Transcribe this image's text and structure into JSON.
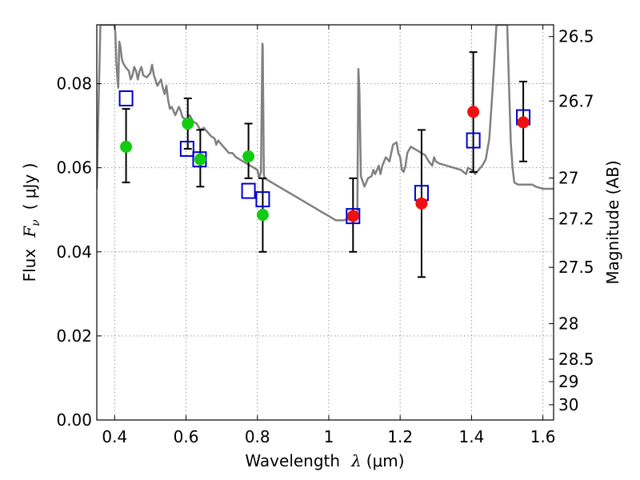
{
  "chart_data": {
    "type": "scatter",
    "xlabel": {
      "prefix": "Wavelength",
      "symbol": "λ",
      "unit": "(μm)"
    },
    "ylabel": {
      "prefix": "Flux",
      "symbol": "F",
      "sub": "ν",
      "unit": "( μJy )"
    },
    "y2label": "Magnitude (AB)",
    "xlim": [
      0.35,
      1.63
    ],
    "ylim": [
      0.0,
      0.094
    ],
    "grid": true,
    "x_ticks": [
      {
        "v": 0.4,
        "label": "0.4"
      },
      {
        "v": 0.6,
        "label": "0.6"
      },
      {
        "v": 0.8,
        "label": "0.8"
      },
      {
        "v": 1.0,
        "label": "1"
      },
      {
        "v": 1.2,
        "label": "1.2"
      },
      {
        "v": 1.4,
        "label": "1.4"
      },
      {
        "v": 1.6,
        "label": "1.6"
      }
    ],
    "y_ticks": [
      {
        "v": 0.0,
        "label": "0.00"
      },
      {
        "v": 0.02,
        "label": "0.02"
      },
      {
        "v": 0.04,
        "label": "0.04"
      },
      {
        "v": 0.06,
        "label": "0.06"
      },
      {
        "v": 0.08,
        "label": "0.08"
      }
    ],
    "y2_ticks": [
      {
        "mag": 26.5,
        "label": "26.5"
      },
      {
        "mag": 26.7,
        "label": "26.7"
      },
      {
        "mag": 27.0,
        "label": "27"
      },
      {
        "mag": 27.2,
        "label": "27.2"
      },
      {
        "mag": 27.5,
        "label": "27.5"
      },
      {
        "mag": 28.0,
        "label": "28"
      },
      {
        "mag": 28.5,
        "label": "28.5"
      },
      {
        "mag": 29.0,
        "label": "29"
      },
      {
        "mag": 30.0,
        "label": "30"
      }
    ],
    "model_sed": [
      [
        0.35,
        0.055
      ],
      [
        0.355,
        0.075
      ],
      [
        0.36,
        0.094
      ],
      [
        0.363,
        0.094
      ],
      [
        0.4,
        0.094
      ],
      [
        0.402,
        0.092
      ],
      [
        0.405,
        0.085
      ],
      [
        0.408,
        0.081
      ],
      [
        0.41,
        0.079
      ],
      [
        0.413,
        0.09
      ],
      [
        0.416,
        0.089
      ],
      [
        0.42,
        0.086
      ],
      [
        0.423,
        0.085
      ],
      [
        0.43,
        0.084
      ],
      [
        0.44,
        0.083
      ],
      [
        0.445,
        0.081
      ],
      [
        0.45,
        0.082
      ],
      [
        0.455,
        0.084
      ],
      [
        0.46,
        0.083
      ],
      [
        0.465,
        0.081
      ],
      [
        0.47,
        0.083
      ],
      [
        0.475,
        0.084
      ],
      [
        0.48,
        0.082
      ],
      [
        0.49,
        0.0815
      ],
      [
        0.5,
        0.0825
      ],
      [
        0.505,
        0.0845
      ],
      [
        0.51,
        0.082
      ],
      [
        0.52,
        0.0795
      ],
      [
        0.53,
        0.081
      ],
      [
        0.535,
        0.079
      ],
      [
        0.54,
        0.0775
      ],
      [
        0.545,
        0.0795
      ],
      [
        0.55,
        0.076
      ],
      [
        0.555,
        0.074
      ],
      [
        0.56,
        0.0745
      ],
      [
        0.57,
        0.0725
      ],
      [
        0.58,
        0.0745
      ],
      [
        0.585,
        0.0735
      ],
      [
        0.59,
        0.072
      ],
      [
        0.6,
        0.0715
      ],
      [
        0.61,
        0.0725
      ],
      [
        0.62,
        0.071
      ],
      [
        0.63,
        0.0705
      ],
      [
        0.64,
        0.069
      ],
      [
        0.65,
        0.0695
      ],
      [
        0.66,
        0.0685
      ],
      [
        0.67,
        0.0675
      ],
      [
        0.68,
        0.067
      ],
      [
        0.685,
        0.0655
      ],
      [
        0.69,
        0.0665
      ],
      [
        0.7,
        0.0655
      ],
      [
        0.71,
        0.0645
      ],
      [
        0.72,
        0.0635
      ],
      [
        0.73,
        0.0635
      ],
      [
        0.74,
        0.0625
      ],
      [
        0.76,
        0.0615
      ],
      [
        0.78,
        0.0605
      ],
      [
        0.8,
        0.0595
      ],
      [
        0.805,
        0.0575
      ],
      [
        0.81,
        0.059
      ],
      [
        0.814,
        0.0895
      ],
      [
        0.815,
        0.089
      ],
      [
        0.818,
        0.0585
      ],
      [
        0.82,
        0.0575
      ],
      [
        0.84,
        0.0565
      ],
      [
        0.86,
        0.0555
      ],
      [
        0.88,
        0.0545
      ],
      [
        0.9,
        0.0535
      ],
      [
        0.92,
        0.0525
      ],
      [
        0.94,
        0.0515
      ],
      [
        0.96,
        0.0505
      ],
      [
        0.98,
        0.0495
      ],
      [
        1.0,
        0.0485
      ],
      [
        1.02,
        0.0475
      ],
      [
        1.04,
        0.0475
      ],
      [
        1.06,
        0.0478
      ],
      [
        1.08,
        0.0482
      ],
      [
        1.083,
        0.0835
      ],
      [
        1.086,
        0.078
      ],
      [
        1.09,
        0.058
      ],
      [
        1.1,
        0.0555
      ],
      [
        1.11,
        0.0575
      ],
      [
        1.12,
        0.058
      ],
      [
        1.125,
        0.0595
      ],
      [
        1.13,
        0.0585
      ],
      [
        1.14,
        0.0605
      ],
      [
        1.145,
        0.0585
      ],
      [
        1.15,
        0.0605
      ],
      [
        1.16,
        0.0625
      ],
      [
        1.17,
        0.0615
      ],
      [
        1.18,
        0.0655
      ],
      [
        1.19,
        0.066
      ],
      [
        1.195,
        0.0635
      ],
      [
        1.2,
        0.0625
      ],
      [
        1.205,
        0.0595
      ],
      [
        1.21,
        0.059
      ],
      [
        1.215,
        0.0605
      ],
      [
        1.22,
        0.0635
      ],
      [
        1.23,
        0.065
      ],
      [
        1.25,
        0.064
      ],
      [
        1.27,
        0.063
      ],
      [
        1.28,
        0.0615
      ],
      [
        1.29,
        0.0605
      ],
      [
        1.295,
        0.0625
      ],
      [
        1.3,
        0.0615
      ],
      [
        1.31,
        0.061
      ],
      [
        1.33,
        0.0605
      ],
      [
        1.35,
        0.06
      ],
      [
        1.37,
        0.0595
      ],
      [
        1.385,
        0.0585
      ],
      [
        1.39,
        0.06
      ],
      [
        1.4,
        0.0595
      ],
      [
        1.41,
        0.0585
      ],
      [
        1.42,
        0.0595
      ],
      [
        1.43,
        0.0605
      ],
      [
        1.44,
        0.062
      ],
      [
        1.45,
        0.067
      ],
      [
        1.46,
        0.08
      ],
      [
        1.47,
        0.094
      ],
      [
        1.5,
        0.094
      ],
      [
        1.505,
        0.08
      ],
      [
        1.51,
        0.066
      ],
      [
        1.515,
        0.06
      ],
      [
        1.52,
        0.0565
      ],
      [
        1.53,
        0.056
      ],
      [
        1.55,
        0.056
      ],
      [
        1.57,
        0.056
      ],
      [
        1.58,
        0.0555
      ],
      [
        1.6,
        0.055
      ],
      [
        1.63,
        0.055
      ]
    ],
    "error_bars": [
      {
        "x": 0.432,
        "lo": 0.0565,
        "hi": 0.074
      },
      {
        "x": 0.605,
        "lo": 0.0645,
        "hi": 0.0765
      },
      {
        "x": 0.64,
        "lo": 0.0555,
        "hi": 0.069
      },
      {
        "x": 0.775,
        "lo": 0.0575,
        "hi": 0.0705
      },
      {
        "x": 0.815,
        "lo": 0.04,
        "hi": 0.0575
      },
      {
        "x": 1.068,
        "lo": 0.04,
        "hi": 0.0575
      },
      {
        "x": 1.26,
        "lo": 0.034,
        "hi": 0.069
      },
      {
        "x": 1.405,
        "lo": 0.059,
        "hi": 0.0875
      },
      {
        "x": 1.545,
        "lo": 0.0615,
        "hi": 0.0805
      }
    ],
    "model_photometry": [
      {
        "x": 0.432,
        "y": 0.0765
      },
      {
        "x": 0.603,
        "y": 0.0645
      },
      {
        "x": 0.638,
        "y": 0.062
      },
      {
        "x": 0.775,
        "y": 0.0545
      },
      {
        "x": 0.815,
        "y": 0.0525
      },
      {
        "x": 1.068,
        "y": 0.0485
      },
      {
        "x": 1.26,
        "y": 0.054
      },
      {
        "x": 1.405,
        "y": 0.0665
      },
      {
        "x": 1.545,
        "y": 0.072
      }
    ],
    "observed_optical": [
      {
        "x": 0.432,
        "y": 0.065
      },
      {
        "x": 0.605,
        "y": 0.0705
      },
      {
        "x": 0.64,
        "y": 0.062
      },
      {
        "x": 0.775,
        "y": 0.0627
      },
      {
        "x": 0.815,
        "y": 0.0488
      }
    ],
    "observed_nir": [
      {
        "x": 1.068,
        "y": 0.0485
      },
      {
        "x": 1.26,
        "y": 0.0515
      },
      {
        "x": 1.405,
        "y": 0.0733
      },
      {
        "x": 1.545,
        "y": 0.0708
      }
    ],
    "colors": {
      "model_line": "#808080",
      "model_squares": "#0000cc",
      "optical_points": "#11cc11",
      "nir_points": "#ee1111",
      "error_bars": "#000000",
      "grid": "#9a9a9a"
    }
  }
}
